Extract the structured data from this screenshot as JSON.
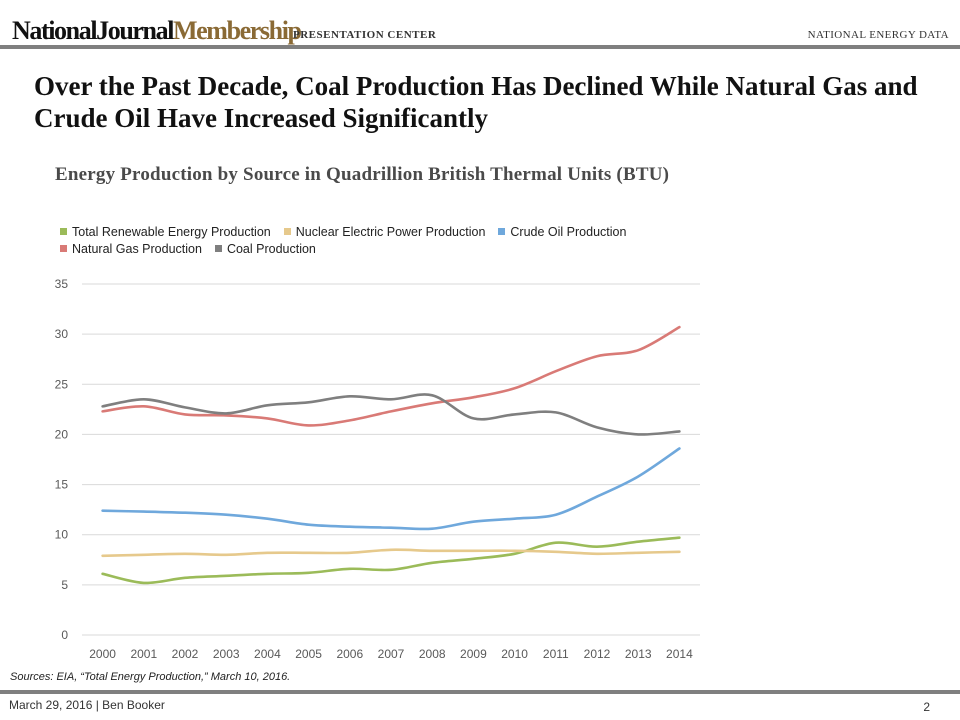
{
  "header": {
    "brand_part1": "NationalJournal",
    "brand_part2": "Membership",
    "section": "PRESENTATION CENTER",
    "tag": "NATIONAL ENERGY DATA"
  },
  "headline": "Over the Past Decade, Coal Production Has Declined While Natural Gas and Crude Oil Have Increased Significantly",
  "chart_data": {
    "type": "line",
    "title": "Energy Production by Source in Quadrillion British Thermal Units (BTU)",
    "xlabel": "",
    "ylabel": "",
    "categories": [
      "2000",
      "2001",
      "2002",
      "2003",
      "2004",
      "2005",
      "2006",
      "2007",
      "2008",
      "2009",
      "2010",
      "2011",
      "2012",
      "2013",
      "2014"
    ],
    "ylim": [
      0,
      35
    ],
    "yticks": [
      0,
      5,
      10,
      15,
      20,
      25,
      30,
      35
    ],
    "grid": "horizontal",
    "legend_position": "top",
    "series": [
      {
        "name": "Total Renewable Energy Production",
        "color": "#9bbb59",
        "values": [
          6.1,
          5.2,
          5.7,
          5.9,
          6.1,
          6.2,
          6.6,
          6.5,
          7.2,
          7.6,
          8.1,
          9.2,
          8.8,
          9.3,
          9.7
        ]
      },
      {
        "name": "Nuclear Electric Power Production",
        "color": "#e6c98c",
        "values": [
          7.9,
          8.0,
          8.1,
          8.0,
          8.2,
          8.2,
          8.2,
          8.5,
          8.4,
          8.4,
          8.4,
          8.3,
          8.1,
          8.2,
          8.3
        ]
      },
      {
        "name": "Crude Oil Production",
        "color": "#6fa8dc",
        "values": [
          12.4,
          12.3,
          12.2,
          12.0,
          11.6,
          11.0,
          10.8,
          10.7,
          10.6,
          11.3,
          11.6,
          12.0,
          13.8,
          15.8,
          18.6
        ]
      },
      {
        "name": "Natural Gas Production",
        "color": "#d97a76",
        "values": [
          22.3,
          22.8,
          22.0,
          21.9,
          21.6,
          20.9,
          21.4,
          22.3,
          23.1,
          23.7,
          24.6,
          26.3,
          27.8,
          28.4,
          30.7
        ]
      },
      {
        "name": "Coal Production",
        "color": "#7f7f7f",
        "values": [
          22.8,
          23.5,
          22.7,
          22.1,
          22.9,
          23.2,
          23.8,
          23.5,
          23.9,
          21.6,
          22.0,
          22.2,
          20.7,
          20.0,
          20.3
        ]
      }
    ]
  },
  "sources": "Sources: EIA, “Total Energy Production,” March 10, 2016.",
  "footer": {
    "date_author": "March 29, 2016  |  Ben Booker",
    "page": "2"
  }
}
